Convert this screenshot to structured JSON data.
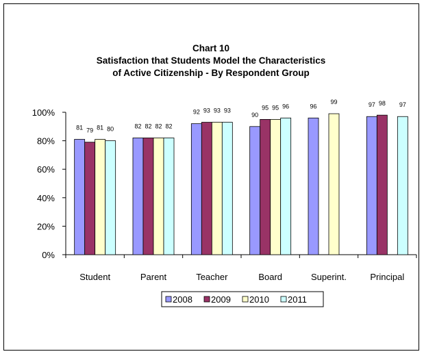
{
  "chart_data": {
    "type": "bar",
    "title_lines": [
      "Chart 10",
      "Satisfaction that Students Model the Characteristics",
      "of Active Citizenship - By Respondent Group"
    ],
    "categories": [
      "Student",
      "Parent",
      "Teacher",
      "Board",
      "Superint.",
      "Principal"
    ],
    "series": [
      {
        "name": "2008",
        "color": "#9999ff",
        "values": [
          81,
          82,
          92,
          90,
          96,
          97
        ]
      },
      {
        "name": "2009",
        "color": "#993366",
        "values": [
          79,
          82,
          93,
          95,
          null,
          98
        ]
      },
      {
        "name": "2010",
        "color": "#ffffcc",
        "values": [
          81,
          82,
          93,
          95,
          99,
          null
        ]
      },
      {
        "name": "2011",
        "color": "#ccffff",
        "values": [
          80,
          82,
          93,
          96,
          null,
          97
        ]
      }
    ],
    "yticks": [
      "0%",
      "20%",
      "40%",
      "60%",
      "80%",
      "100%"
    ],
    "ylim": [
      0,
      100
    ],
    "legend_position": "bottom",
    "grid": false
  }
}
